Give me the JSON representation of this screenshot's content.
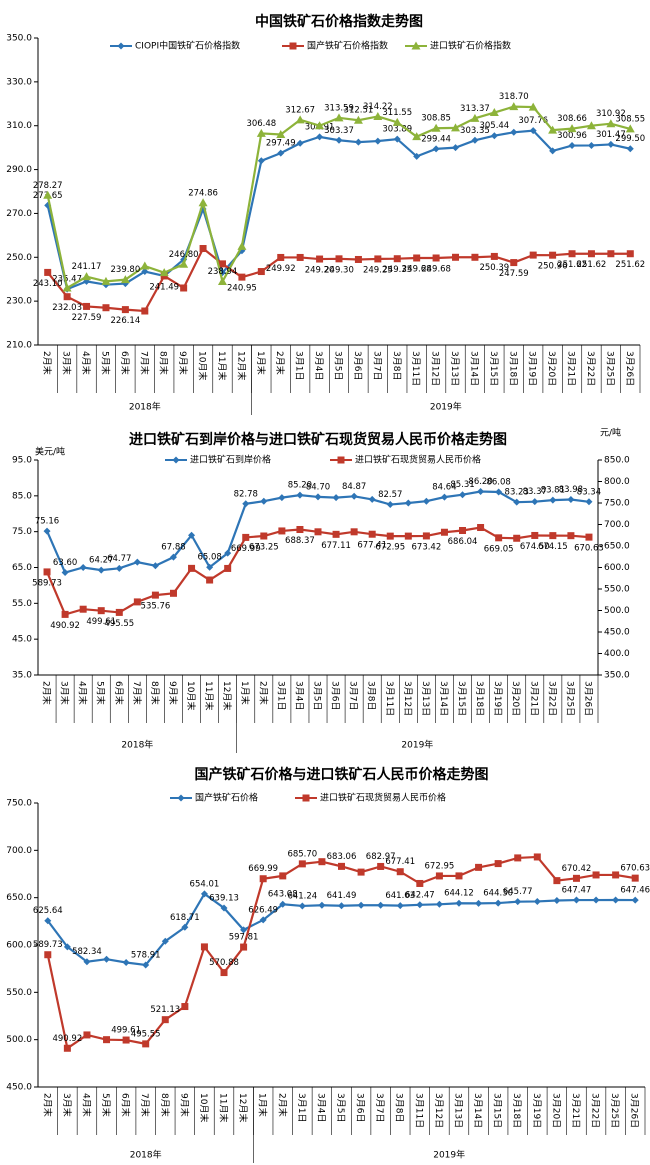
{
  "chart_data": [
    {
      "type": "line",
      "title": "中国铁矿石价格指数走势图",
      "categories": [
        "2月末",
        "3月末",
        "4月末",
        "5月末",
        "6月末",
        "7月末",
        "8月末",
        "9月末",
        "10月末",
        "11月末",
        "12月末",
        "1月末",
        "2月末",
        "3月1日",
        "3月4日",
        "3月5日",
        "3月6日",
        "3月7日",
        "3月8日",
        "3月11日",
        "3月12日",
        "3月13日",
        "3月14日",
        "3月15日",
        "3月18日",
        "3月19日",
        "3月20日",
        "3月21日",
        "3月22日",
        "3月25日",
        "3月26日"
      ],
      "groups": [
        "2018年",
        "2019年"
      ],
      "ylim": [
        210,
        350
      ],
      "yticks": [
        {
          "value": 210,
          "label": "210.0"
        },
        {
          "value": 230,
          "label": "230.0"
        },
        {
          "value": 250,
          "label": "250.0"
        },
        {
          "value": 270,
          "label": "270.0"
        },
        {
          "value": 290,
          "label": "290.0"
        },
        {
          "value": 310,
          "label": "310.0"
        },
        {
          "value": 330,
          "label": "330.0"
        },
        {
          "value": 350,
          "label": "350.0"
        }
      ],
      "series": [
        {
          "name": "CIOPI中国铁矿石价格指数",
          "color": "#2e75b6",
          "marker": "diamond",
          "values": [
            273.65,
            235.47,
            239,
            237.5,
            238,
            243.5,
            241.5,
            249,
            272,
            243,
            253,
            294,
            297.49,
            302,
            304.91,
            303.37,
            302.5,
            303,
            303.89,
            296,
            299.44,
            300,
            303.35,
            305.44,
            307,
            307.76,
            298.5,
            300.96,
            301,
            301.47,
            299.5
          ],
          "value_labels": [
            "273.65",
            "235.47",
            null,
            null,
            null,
            null,
            null,
            null,
            null,
            null,
            null,
            null,
            "297.49",
            null,
            "304.91",
            "303.37",
            null,
            null,
            "303.89",
            null,
            "299.44",
            null,
            "303.35",
            "305.44",
            null,
            "307.76",
            null,
            "300.96",
            null,
            "301.47",
            "299.50"
          ]
        },
        {
          "name": "国产铁矿石价格指数",
          "color": "#c0392b",
          "marker": "square",
          "values": [
            243.1,
            232.03,
            227.59,
            227,
            226.14,
            225.5,
            241.49,
            236,
            254,
            247,
            240.95,
            243.5,
            249.92,
            249.92,
            249.2,
            249.3,
            249,
            249.25,
            249.35,
            249.68,
            249.68,
            250,
            250,
            250.39,
            247.59,
            251,
            250.96,
            251.62,
            251.62,
            251.62,
            251.62
          ],
          "value_labels": [
            "243.10",
            "232.03",
            "227.59",
            null,
            "226.14",
            null,
            "241.49",
            null,
            null,
            null,
            "240.95",
            null,
            "249.92",
            null,
            "249.20",
            "249.30",
            null,
            "249.25",
            "249.35",
            "249.68",
            "249.68",
            null,
            null,
            "250.39",
            "247.59",
            null,
            "250.96",
            "251.62",
            "251.62",
            null,
            "251.62"
          ]
        },
        {
          "name": "进口铁矿石价格指数",
          "color": "#8db33a",
          "marker": "triangle",
          "values": [
            278.27,
            236,
            241.17,
            239,
            239.8,
            246,
            243,
            246.8,
            274.86,
            238.94,
            255,
            306.48,
            306,
            312.67,
            310,
            313.59,
            312.51,
            314.22,
            311.55,
            305,
            308.85,
            309,
            313.37,
            316,
            318.7,
            318.5,
            308,
            308.66,
            310,
            310.92,
            308.55
          ],
          "value_labels": [
            "278.27",
            null,
            "241.17",
            null,
            "239.80",
            null,
            null,
            "246.80",
            "274.86",
            "238.94",
            null,
            "306.48",
            null,
            "312.67",
            null,
            "313.59",
            "312.51",
            "314.22",
            "311.55",
            null,
            "308.85",
            null,
            "313.37",
            null,
            "318.70",
            null,
            null,
            "308.66",
            null,
            "310.92",
            "308.55"
          ]
        }
      ]
    },
    {
      "type": "line",
      "title": "进口铁矿石到岸价格与进口铁矿石现货贸易人民币价格走势图",
      "y_label": "美元/吨",
      "y2_label": "元/吨",
      "categories": [
        "2月末",
        "3月末",
        "4月末",
        "5月末",
        "6月末",
        "7月末",
        "8月末",
        "9月末",
        "10月末",
        "11月末",
        "12月末",
        "1月末",
        "2月末",
        "3月1日",
        "3月4日",
        "3月5日",
        "3月6日",
        "3月7日",
        "3月8日",
        "3月11日",
        "3月12日",
        "3月13日",
        "3月14日",
        "3月15日",
        "3月18日",
        "3月19日",
        "3月20日",
        "3月21日",
        "3月22日",
        "3月25日",
        "3月26日"
      ],
      "groups": [
        "2018年",
        "2019年"
      ],
      "ylim": [
        35,
        95
      ],
      "yticks": [
        {
          "value": 35,
          "label": "35.0"
        },
        {
          "value": 45,
          "label": "45.0"
        },
        {
          "value": 55,
          "label": "55.0"
        },
        {
          "value": 65,
          "label": "65.0"
        },
        {
          "value": 75,
          "label": "75.0"
        },
        {
          "value": 85,
          "label": "85.0"
        },
        {
          "value": 95,
          "label": "95.0"
        }
      ],
      "y2lim": [
        350,
        850
      ],
      "y2ticks": [
        {
          "value": 350,
          "label": "350.0"
        },
        {
          "value": 400,
          "label": "400.0"
        },
        {
          "value": 450,
          "label": "450.0"
        },
        {
          "value": 500,
          "label": "500.0"
        },
        {
          "value": 550,
          "label": "550.0"
        },
        {
          "value": 600,
          "label": "600.0"
        },
        {
          "value": 650,
          "label": "650.0"
        },
        {
          "value": 700,
          "label": "700.0"
        },
        {
          "value": 750,
          "label": "750.0"
        },
        {
          "value": 800,
          "label": "800.0"
        },
        {
          "value": 850,
          "label": "850.0"
        }
      ],
      "series": [
        {
          "name": "进口铁矿石到岸价格",
          "color": "#2e75b6",
          "marker": "diamond",
          "values": [
            75.16,
            63.6,
            65,
            64.27,
            64.77,
            66.5,
            65.5,
            67.88,
            74,
            65.08,
            69,
            82.78,
            83.5,
            84.5,
            85.2,
            84.7,
            84.5,
            84.87,
            84,
            82.57,
            83,
            83.5,
            84.64,
            85.31,
            86.2,
            86.08,
            83.23,
            83.37,
            83.81,
            83.98,
            83.34
          ],
          "value_labels": [
            "75.16",
            "63.60",
            null,
            "64.27",
            "64.77",
            null,
            null,
            "67.88",
            null,
            "65.08",
            null,
            "82.78",
            null,
            null,
            "85.20",
            "84.70",
            null,
            "84.87",
            null,
            "82.57",
            null,
            null,
            "84.64",
            "85.31",
            "86.20",
            "86.08",
            "83.23",
            "83.37",
            "83.81",
            "83.98",
            "83.34"
          ]
        },
        {
          "name": "进口铁矿石现货贸易人民币价格",
          "color": "#c0392b",
          "marker": "square",
          "axis": "y2",
          "values": [
            589.73,
            490.92,
            503,
            499.61,
            495.55,
            520,
            535.76,
            540,
            598,
            570.88,
            597.81,
            669.99,
            673.25,
            685,
            688.37,
            683,
            677.11,
            683,
            677.41,
            672.95,
            673,
            673.42,
            682,
            686.04,
            693,
            669.05,
            668,
            674.5,
            674.15,
            674,
            670.63
          ],
          "value_labels": [
            "589.73",
            "490.92",
            null,
            "499.61",
            "495.55",
            null,
            "535.76",
            null,
            null,
            null,
            null,
            "669.99",
            "673.25",
            null,
            "688.37",
            null,
            "677.11",
            null,
            "677.41",
            "672.95",
            null,
            "673.42",
            null,
            "686.04",
            null,
            "669.05",
            null,
            "674.50",
            "674.15",
            null,
            "670.63"
          ]
        }
      ]
    },
    {
      "type": "line",
      "title": "国产铁矿石价格与进口铁矿石人民币价格走势图",
      "categories": [
        "2月末",
        "3月末",
        "4月末",
        "5月末",
        "6月末",
        "7月末",
        "8月末",
        "9月末",
        "10月末",
        "11月末",
        "12月末",
        "1月末",
        "2月末",
        "3月1日",
        "3月4日",
        "3月5日",
        "3月6日",
        "3月7日",
        "3月8日",
        "3月11日",
        "3月12日",
        "3月13日",
        "3月14日",
        "3月15日",
        "3月18日",
        "3月19日",
        "3月20日",
        "3月21日",
        "3月22日",
        "3月25日",
        "3月26日"
      ],
      "groups": [
        "2018年",
        "2019年"
      ],
      "ylim": [
        450,
        750
      ],
      "yticks": [
        {
          "value": 450,
          "label": "450.0"
        },
        {
          "value": 500,
          "label": "500.0"
        },
        {
          "value": 550,
          "label": "550.0"
        },
        {
          "value": 600,
          "label": "600.0"
        },
        {
          "value": 650,
          "label": "650.0"
        },
        {
          "value": 700,
          "label": "700.0"
        },
        {
          "value": 750,
          "label": "750.0"
        }
      ],
      "series": [
        {
          "name": "国产铁矿石价格",
          "color": "#2e75b6",
          "marker": "diamond",
          "values": [
            625.64,
            598,
            582.34,
            585,
            581.5,
            578.91,
            604,
            618.71,
            654.01,
            639.13,
            616,
            626.49,
            643.08,
            641.24,
            642,
            641.49,
            642,
            642,
            641.63,
            642.47,
            643,
            644.12,
            644,
            644.3,
            645.77,
            646,
            647,
            647.47,
            647.47,
            647.5,
            647.46
          ],
          "value_labels": [
            "625.64",
            null,
            "582.34",
            null,
            null,
            "578.91",
            null,
            "618.71",
            "654.01",
            "639.13",
            null,
            "626.49",
            "643.08",
            "641.24",
            null,
            "641.49",
            null,
            null,
            "641.63",
            "642.47",
            null,
            "644.12",
            null,
            "644.30",
            "645.77",
            null,
            null,
            "647.47",
            null,
            null,
            "647.46"
          ]
        },
        {
          "name": "进口铁矿石现货贸易人民币价格",
          "color": "#c0392b",
          "marker": "square",
          "values": [
            589.73,
            490.92,
            505,
            500,
            499.61,
            495.55,
            521.13,
            535,
            598,
            570.88,
            597.81,
            669.99,
            673,
            685.7,
            688,
            683.06,
            677,
            682.97,
            677.41,
            665,
            672.95,
            673,
            682,
            686,
            692,
            693,
            668,
            670.42,
            674,
            674,
            670.63
          ],
          "value_labels": [
            "589.73",
            "490.92",
            null,
            null,
            "499.61",
            "495.55",
            "521.13",
            null,
            null,
            "570.88",
            "597.81",
            "669.99",
            null,
            "685.70",
            null,
            "683.06",
            null,
            "682.97",
            "677.41",
            null,
            "672.95",
            null,
            null,
            null,
            null,
            null,
            null,
            "670.42",
            null,
            null,
            "670.63"
          ]
        }
      ]
    }
  ]
}
